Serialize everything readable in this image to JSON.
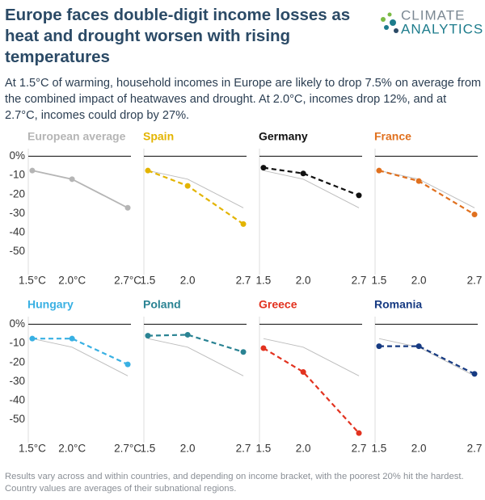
{
  "header": {
    "title": "Europe faces double-digit income losses as heat and drought worsen with rising temperatures",
    "subtitle": "At 1.5°C of warming, household incomes in Europe are likely to drop 7.5% on average from the combined impact of heatwaves and drought. At 2.0°C, incomes drop 12%, and at 2.7°C, incomes could drop by 27%.",
    "logo": {
      "line1": "CLIMATE",
      "line2": "ANALYTICS"
    }
  },
  "note": "Results vary across and within countries, and depending on income bracket, with the poorest 20% hit the hardest. Country values are averages of their subnational regions.",
  "chart_data": [
    {
      "type": "line",
      "title": "European average",
      "x": [
        1.5,
        2,
        2.7
      ],
      "series": [
        {
          "color": "#b5b5b5",
          "dashed": false,
          "values": [
            -7.5,
            -12,
            -27
          ]
        }
      ],
      "xlim": [
        1.47,
        2.72
      ],
      "xticks": [
        {
          "value": 1.5,
          "label": "1.5°C"
        },
        {
          "value": 2,
          "label": "2.0°C"
        },
        {
          "value": 2.7,
          "label": "2.7°C"
        }
      ],
      "ylim": [
        -62,
        4
      ],
      "yticks": [
        {
          "value": 0,
          "label": "0%"
        },
        -10,
        -20,
        -30,
        -40,
        -50
      ]
    },
    {
      "type": "line",
      "title": "Spain",
      "x": [
        1.5,
        2,
        2.7
      ],
      "series": [
        {
          "color": "#e3b400",
          "dashed": true,
          "values": [
            -7.5,
            -15.5,
            -35.5
          ]
        }
      ],
      "xlim": [
        1.47,
        2.72
      ],
      "xticks": [
        1.5,
        {
          "value": 2,
          "label": "2.0"
        },
        2.7
      ],
      "ylim": [
        -62,
        4
      ]
    },
    {
      "type": "line",
      "title": "Germany",
      "x": [
        1.5,
        2,
        2.7
      ],
      "series": [
        {
          "color": "#111111",
          "dashed": true,
          "values": [
            -6,
            -9,
            -20.5
          ]
        }
      ],
      "xlim": [
        1.47,
        2.72
      ],
      "xticks": [
        1.5,
        {
          "value": 2,
          "label": "2.0"
        },
        2.7
      ],
      "ylim": [
        -62,
        4
      ]
    },
    {
      "type": "line",
      "title": "France",
      "x": [
        1.5,
        2,
        2.7
      ],
      "series": [
        {
          "color": "#e0701e",
          "dashed": true,
          "values": [
            -7.5,
            -13,
            -30.5
          ]
        }
      ],
      "xlim": [
        1.47,
        2.72
      ],
      "xticks": [
        1.5,
        {
          "value": 2,
          "label": "2.0"
        },
        2.7
      ],
      "ylim": [
        -62,
        4
      ]
    },
    {
      "type": "line",
      "title": "Hungary",
      "x": [
        1.5,
        2,
        2.7
      ],
      "series": [
        {
          "color": "#38b0e3",
          "dashed": true,
          "values": [
            -7.5,
            -7.5,
            -21
          ]
        }
      ],
      "xlim": [
        1.47,
        2.72
      ],
      "xticks": [
        {
          "value": 1.5,
          "label": "1.5°C"
        },
        {
          "value": 2,
          "label": "2.0°C"
        },
        {
          "value": 2.7,
          "label": "2.7°C"
        }
      ],
      "ylim": [
        -62,
        4
      ],
      "yticks": [
        {
          "value": 0,
          "label": "0%"
        },
        -10,
        -20,
        -30,
        -40,
        -50
      ]
    },
    {
      "type": "line",
      "title": "Poland",
      "x": [
        1.5,
        2,
        2.7
      ],
      "series": [
        {
          "color": "#2a8393",
          "dashed": true,
          "values": [
            -6,
            -5.5,
            -14.5
          ]
        }
      ],
      "xlim": [
        1.47,
        2.72
      ],
      "xticks": [
        1.5,
        {
          "value": 2,
          "label": "2.0"
        },
        2.7
      ],
      "ylim": [
        -62,
        4
      ]
    },
    {
      "type": "line",
      "title": "Greece",
      "x": [
        1.5,
        2,
        2.7
      ],
      "series": [
        {
          "color": "#e2321f",
          "dashed": true,
          "values": [
            -12.5,
            -25,
            -57
          ]
        }
      ],
      "xlim": [
        1.47,
        2.72
      ],
      "xticks": [
        1.5,
        {
          "value": 2,
          "label": "2.0"
        },
        2.7
      ],
      "ylim": [
        -62,
        4
      ]
    },
    {
      "type": "line",
      "title": "Romania",
      "x": [
        1.5,
        2,
        2.7
      ],
      "series": [
        {
          "color": "#163a82",
          "dashed": true,
          "values": [
            -11.5,
            -11.5,
            -26
          ]
        }
      ],
      "xlim": [
        1.47,
        2.72
      ],
      "xticks": [
        1.5,
        {
          "value": 2,
          "label": "2.0"
        },
        2.7
      ],
      "ylim": [
        -62,
        4
      ]
    }
  ]
}
